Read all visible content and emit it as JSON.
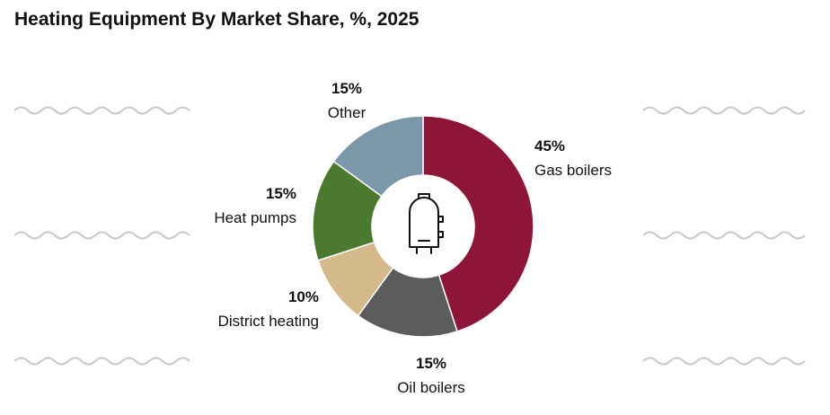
{
  "chart_data": {
    "type": "pie",
    "title": "Heating Equipment By Market Share, %, 2025",
    "categories": [
      "Gas boilers",
      "Oil boilers",
      "District heating",
      "Heat pumps",
      "Other"
    ],
    "values": [
      45,
      15,
      10,
      15,
      15
    ],
    "value_labels": [
      "45%",
      "15%",
      "10%",
      "15%",
      "15%"
    ],
    "colors": [
      "#8c1538",
      "#5c5c5c",
      "#d4b98a",
      "#4b7a2f",
      "#7b97a9"
    ]
  }
}
